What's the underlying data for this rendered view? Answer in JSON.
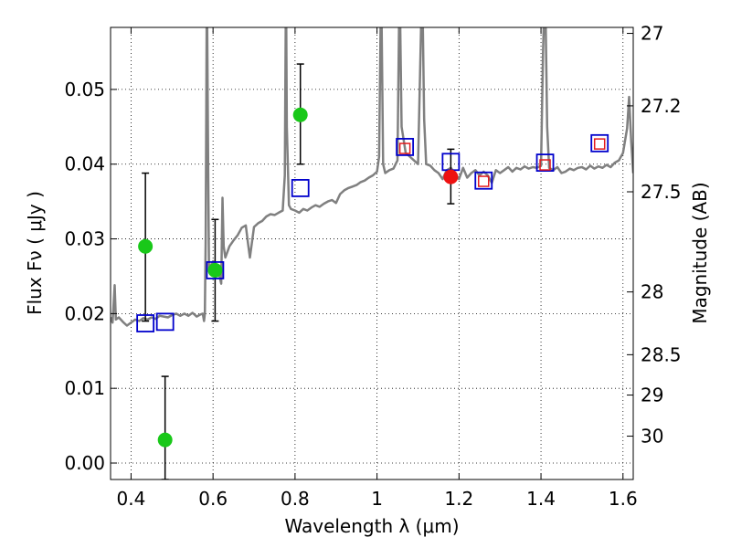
{
  "chart_data": {
    "type": "scatter",
    "xlabel": "Wavelength  λ (μm)",
    "ylabel": "Flux  Fν  ( μJy )",
    "ylabel_right": "Magnitude (AB)",
    "xlim": [
      0.35,
      1.625
    ],
    "ylim": [
      -0.0022,
      0.0583
    ],
    "grid": true,
    "x_ticks": [
      {
        "value": 0.4,
        "label": "0.4"
      },
      {
        "value": 0.6,
        "label": "0.6"
      },
      {
        "value": 0.8,
        "label": "0.8"
      },
      {
        "value": 1.0,
        "label": "1"
      },
      {
        "value": 1.2,
        "label": "1.2"
      },
      {
        "value": 1.4,
        "label": "1.4"
      },
      {
        "value": 1.6,
        "label": "1.6"
      }
    ],
    "y_ticks": [
      {
        "value": 0.0,
        "label": "0.00"
      },
      {
        "value": 0.01,
        "label": "0.01"
      },
      {
        "value": 0.02,
        "label": "0.02"
      },
      {
        "value": 0.03,
        "label": "0.03"
      },
      {
        "value": 0.04,
        "label": "0.04"
      },
      {
        "value": 0.05,
        "label": "0.05"
      }
    ],
    "right_ticks": [
      {
        "flux": 0.0575,
        "label": "27"
      },
      {
        "flux": 0.0478,
        "label": "27.2"
      },
      {
        "flux": 0.0363,
        "label": "27.5"
      },
      {
        "flux": 0.0229,
        "label": "28"
      },
      {
        "flux": 0.0145,
        "label": "28.5"
      },
      {
        "flux": 0.0091,
        "label": "29"
      },
      {
        "flux": 0.0036,
        "label": "30"
      }
    ],
    "series": [
      {
        "marker": "line",
        "color": "#808080",
        "points": [
          [
            0.35,
            0.0195
          ],
          [
            0.355,
            0.0188
          ],
          [
            0.36,
            0.0238
          ],
          [
            0.363,
            0.0192
          ],
          [
            0.37,
            0.0195
          ],
          [
            0.38,
            0.0189
          ],
          [
            0.39,
            0.0184
          ],
          [
            0.4,
            0.0188
          ],
          [
            0.41,
            0.0192
          ],
          [
            0.42,
            0.019
          ],
          [
            0.43,
            0.0194
          ],
          [
            0.44,
            0.0192
          ],
          [
            0.45,
            0.0195
          ],
          [
            0.46,
            0.0193
          ],
          [
            0.47,
            0.0197
          ],
          [
            0.48,
            0.0196
          ],
          [
            0.49,
            0.0195
          ],
          [
            0.5,
            0.0198
          ],
          [
            0.51,
            0.02
          ],
          [
            0.52,
            0.0197
          ],
          [
            0.53,
            0.02
          ],
          [
            0.54,
            0.0197
          ],
          [
            0.55,
            0.0201
          ],
          [
            0.56,
            0.0196
          ],
          [
            0.57,
            0.0199
          ],
          [
            0.575,
            0.02
          ],
          [
            0.578,
            0.019
          ],
          [
            0.58,
            0.02
          ],
          [
            0.582,
            0.03
          ],
          [
            0.585,
            0.065
          ],
          [
            0.588,
            0.04
          ],
          [
            0.59,
            0.026
          ],
          [
            0.6,
            0.027
          ],
          [
            0.61,
            0.0265
          ],
          [
            0.62,
            0.024
          ],
          [
            0.623,
            0.0355
          ],
          [
            0.626,
            0.029
          ],
          [
            0.63,
            0.0275
          ],
          [
            0.64,
            0.029
          ],
          [
            0.65,
            0.0298
          ],
          [
            0.66,
            0.0305
          ],
          [
            0.67,
            0.0315
          ],
          [
            0.68,
            0.0318
          ],
          [
            0.685,
            0.0295
          ],
          [
            0.69,
            0.0275
          ],
          [
            0.7,
            0.0316
          ],
          [
            0.71,
            0.0321
          ],
          [
            0.72,
            0.0324
          ],
          [
            0.73,
            0.033
          ],
          [
            0.74,
            0.0333
          ],
          [
            0.75,
            0.0332
          ],
          [
            0.76,
            0.0335
          ],
          [
            0.77,
            0.0338
          ],
          [
            0.775,
            0.0385
          ],
          [
            0.778,
            0.065
          ],
          [
            0.78,
            0.045
          ],
          [
            0.785,
            0.0345
          ],
          [
            0.79,
            0.034
          ],
          [
            0.8,
            0.0338
          ],
          [
            0.81,
            0.0335
          ],
          [
            0.82,
            0.034
          ],
          [
            0.83,
            0.0338
          ],
          [
            0.84,
            0.0342
          ],
          [
            0.85,
            0.0345
          ],
          [
            0.86,
            0.0343
          ],
          [
            0.87,
            0.0347
          ],
          [
            0.88,
            0.035
          ],
          [
            0.89,
            0.0352
          ],
          [
            0.9,
            0.0348
          ],
          [
            0.91,
            0.036
          ],
          [
            0.92,
            0.0365
          ],
          [
            0.93,
            0.0368
          ],
          [
            0.94,
            0.037
          ],
          [
            0.95,
            0.0372
          ],
          [
            0.96,
            0.0376
          ],
          [
            0.97,
            0.0378
          ],
          [
            0.98,
            0.0382
          ],
          [
            0.99,
            0.0385
          ],
          [
            1.0,
            0.039
          ],
          [
            1.005,
            0.041
          ],
          [
            1.01,
            0.065
          ],
          [
            1.015,
            0.04
          ],
          [
            1.02,
            0.0388
          ],
          [
            1.03,
            0.0392
          ],
          [
            1.04,
            0.0394
          ],
          [
            1.05,
            0.0405
          ],
          [
            1.055,
            0.065
          ],
          [
            1.06,
            0.045
          ],
          [
            1.07,
            0.0415
          ],
          [
            1.08,
            0.041
          ],
          [
            1.09,
            0.0405
          ],
          [
            1.1,
            0.04
          ],
          [
            1.105,
            0.052
          ],
          [
            1.11,
            0.065
          ],
          [
            1.115,
            0.046
          ],
          [
            1.12,
            0.04
          ],
          [
            1.13,
            0.0398
          ],
          [
            1.14,
            0.0392
          ],
          [
            1.15,
            0.0388
          ],
          [
            1.16,
            0.038
          ],
          [
            1.17,
            0.0392
          ],
          [
            1.18,
            0.0395
          ],
          [
            1.19,
            0.0388
          ],
          [
            1.2,
            0.038
          ],
          [
            1.21,
            0.0395
          ],
          [
            1.22,
            0.0382
          ],
          [
            1.23,
            0.0388
          ],
          [
            1.24,
            0.0392
          ],
          [
            1.25,
            0.0385
          ],
          [
            1.26,
            0.039
          ],
          [
            1.27,
            0.0385
          ],
          [
            1.28,
            0.0375
          ],
          [
            1.29,
            0.0392
          ],
          [
            1.3,
            0.0388
          ],
          [
            1.31,
            0.0392
          ],
          [
            1.32,
            0.0396
          ],
          [
            1.33,
            0.039
          ],
          [
            1.34,
            0.0395
          ],
          [
            1.35,
            0.0393
          ],
          [
            1.36,
            0.0397
          ],
          [
            1.37,
            0.0394
          ],
          [
            1.38,
            0.0396
          ],
          [
            1.39,
            0.0395
          ],
          [
            1.4,
            0.0398
          ],
          [
            1.405,
            0.055
          ],
          [
            1.41,
            0.065
          ],
          [
            1.415,
            0.045
          ],
          [
            1.42,
            0.0395
          ],
          [
            1.43,
            0.0392
          ],
          [
            1.44,
            0.0396
          ],
          [
            1.45,
            0.0388
          ],
          [
            1.46,
            0.039
          ],
          [
            1.47,
            0.0394
          ],
          [
            1.48,
            0.0392
          ],
          [
            1.49,
            0.0395
          ],
          [
            1.5,
            0.0396
          ],
          [
            1.51,
            0.0393
          ],
          [
            1.52,
            0.0398
          ],
          [
            1.53,
            0.0394
          ],
          [
            1.54,
            0.0397
          ],
          [
            1.55,
            0.0395
          ],
          [
            1.56,
            0.0399
          ],
          [
            1.57,
            0.0396
          ],
          [
            1.58,
            0.0402
          ],
          [
            1.59,
            0.0405
          ],
          [
            1.6,
            0.0415
          ],
          [
            1.61,
            0.0448
          ],
          [
            1.615,
            0.049
          ],
          [
            1.62,
            0.043
          ],
          [
            1.625,
            0.0388
          ]
        ]
      },
      {
        "marker": "square",
        "color": "#0000cc",
        "points": [
          [
            0.435,
            0.0187
          ],
          [
            0.483,
            0.0189
          ],
          [
            0.605,
            0.0258
          ],
          [
            0.813,
            0.0368
          ],
          [
            1.068,
            0.0423
          ],
          [
            1.18,
            0.0403
          ],
          [
            1.26,
            0.0378
          ],
          [
            1.41,
            0.0402
          ],
          [
            1.543,
            0.0428
          ]
        ]
      },
      {
        "marker": "square",
        "color": "#e31a1c",
        "points": [
          [
            1.068,
            0.0421
          ],
          [
            1.26,
            0.0377
          ],
          [
            1.41,
            0.0399
          ],
          [
            1.543,
            0.0427
          ]
        ]
      },
      {
        "marker": "circle",
        "color": "#19c819",
        "points": [
          [
            0.435,
            0.029
          ],
          [
            0.483,
            0.0031
          ],
          [
            0.605,
            0.0258
          ],
          [
            0.813,
            0.0466
          ]
        ]
      },
      {
        "marker": "circle",
        "color": "#ee1111",
        "points": [
          [
            1.18,
            0.0383
          ]
        ]
      }
    ],
    "errorbars": [
      {
        "x": 0.435,
        "low": 0.019,
        "high": 0.0388
      },
      {
        "x": 0.483,
        "low": -0.0022,
        "high": 0.0116
      },
      {
        "x": 0.605,
        "low": 0.019,
        "high": 0.0326
      },
      {
        "x": 0.813,
        "low": 0.04,
        "high": 0.0534
      },
      {
        "x": 1.18,
        "low": 0.0347,
        "high": 0.042
      }
    ]
  }
}
